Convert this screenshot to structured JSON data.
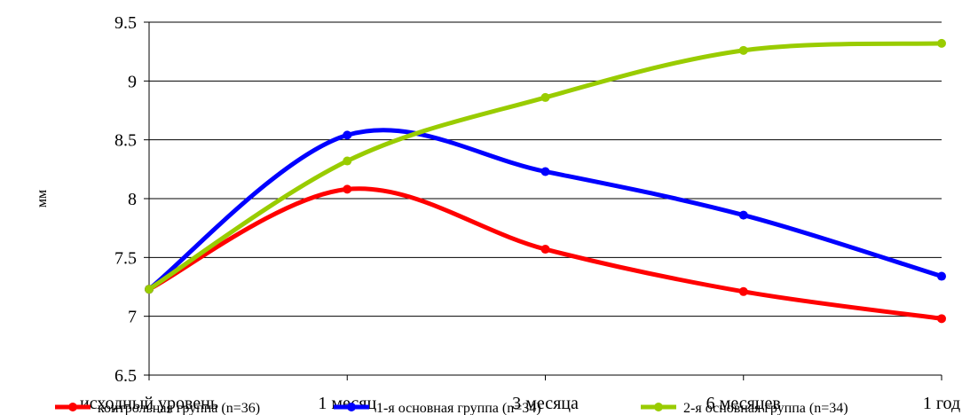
{
  "chart_data": {
    "type": "line",
    "title": "",
    "xlabel": "",
    "ylabel": "мм",
    "categories": [
      "исходный уровень",
      "1 месяц",
      "3 месяца",
      "6 месяцев",
      "1 год"
    ],
    "ylim": [
      6.5,
      9.5
    ],
    "yticks": [
      "6.5",
      "7",
      "7.5",
      "8",
      "8.5",
      "9",
      "9.5"
    ],
    "grid": true,
    "smooth": true,
    "legend_position": "bottom",
    "series": [
      {
        "name": "контрольная группа (n=36)",
        "color": "#ff0000",
        "values": [
          7.23,
          8.08,
          7.57,
          7.21,
          6.98
        ]
      },
      {
        "name": "1-я основная группа (n=34)",
        "color": "#0000ff",
        "values": [
          7.23,
          8.54,
          8.23,
          7.86,
          7.34
        ]
      },
      {
        "name": "2-я основная группа (n=34)",
        "color": "#99cc00",
        "values": [
          7.23,
          8.32,
          8.86,
          9.26,
          9.32
        ]
      }
    ]
  }
}
